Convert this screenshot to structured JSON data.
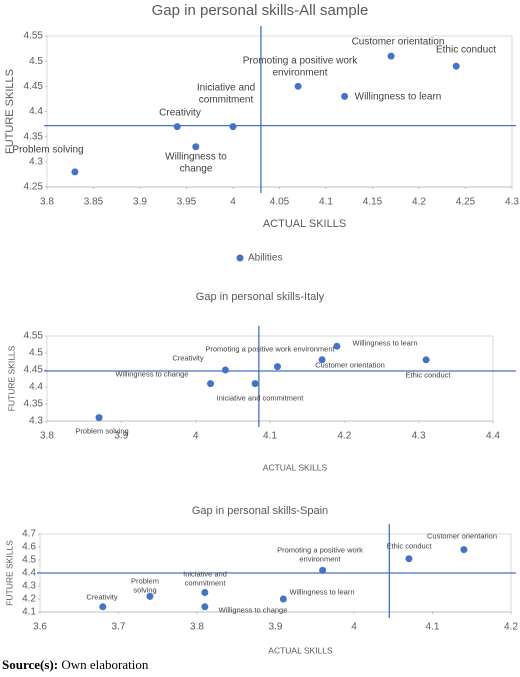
{
  "chart_data": [
    {
      "type": "scatter",
      "title": "Gap in personal skills-All sample",
      "x_label": "ACTUAL SKILLS",
      "y_label": "FUTURE SKILLS",
      "legend": "Abilities",
      "color": "#4472c4",
      "labels": [
        "Problem solving",
        "Creativity",
        "Willingness to change",
        "Iniciative and commitment",
        "Promoting a positive work environment",
        "Willingness to learn",
        "Customer orientation",
        "Ethic conduct"
      ],
      "x": [
        3.83,
        3.94,
        3.96,
        4.0,
        4.07,
        4.12,
        4.17,
        4.24
      ],
      "values": [
        4.28,
        4.37,
        4.33,
        4.37,
        4.45,
        4.43,
        4.51,
        4.49
      ],
      "ref_x": 4.03,
      "ref_y": 4.372,
      "xlim": [
        3.8,
        4.3
      ],
      "xticks": [
        3.8,
        3.85,
        3.9,
        3.95,
        4,
        4.05,
        4.1,
        4.15,
        4.2,
        4.25,
        4.3
      ],
      "ylim": [
        4.25,
        4.55
      ],
      "yticks": [
        4.25,
        4.3,
        4.35,
        4.4,
        4.45,
        4.5,
        4.55
      ]
    },
    {
      "type": "scatter",
      "title": "Gap in personal skills-Italy",
      "x_label": "ACTUAL SKILLS",
      "y_label": "FUTURE SKILLS",
      "color": "#4472c4",
      "labels": [
        "Problem solving",
        "Willingness to change",
        "Creativity",
        "Iniciative and commitment",
        "Promoting a positive work environment",
        "Customer orientation",
        "Willingness to learn",
        "Ethic conduct"
      ],
      "x": [
        3.87,
        4.02,
        4.04,
        4.08,
        4.11,
        4.17,
        4.19,
        4.31
      ],
      "values": [
        4.31,
        4.41,
        4.45,
        4.41,
        4.46,
        4.48,
        4.52,
        4.48
      ],
      "ref_x": 4.085,
      "ref_y": 4.447,
      "xlim": [
        3.8,
        4.4
      ],
      "xticks": [
        3.8,
        3.9,
        4,
        4.1,
        4.2,
        4.3,
        4.4
      ],
      "ylim": [
        4.3,
        4.55
      ],
      "yticks": [
        4.3,
        4.35,
        4.4,
        4.45,
        4.5,
        4.55
      ]
    },
    {
      "type": "scatter",
      "title": "Gap in personal skills-Spain",
      "x_label": "ACTUAL SKILLS",
      "y_label": "FUTURE SKILLS",
      "color": "#4472c4",
      "labels": [
        "Creativity",
        "Problem solving",
        "Iniciative and commitment",
        "Willigness to change",
        "Willingness to learn",
        "Promoting a positive work environment",
        "Ethic conduct",
        "Customer orientarion"
      ],
      "x": [
        3.68,
        3.74,
        3.81,
        3.81,
        3.91,
        3.96,
        4.07,
        4.14
      ],
      "values": [
        4.14,
        4.22,
        4.25,
        4.14,
        4.2,
        4.42,
        4.51,
        4.58
      ],
      "ref_x": 4.045,
      "ref_y": 4.4,
      "xlim": [
        3.6,
        4.2
      ],
      "xticks": [
        3.6,
        3.7,
        3.8,
        3.9,
        4,
        4.1,
        4.2
      ],
      "ylim": [
        4.1,
        4.7
      ],
      "yticks": [
        4.1,
        4.2,
        4.3,
        4.4,
        4.5,
        4.6,
        4.7
      ]
    }
  ],
  "source": {
    "label": "Source(s):",
    "text": "Own elaboration"
  }
}
